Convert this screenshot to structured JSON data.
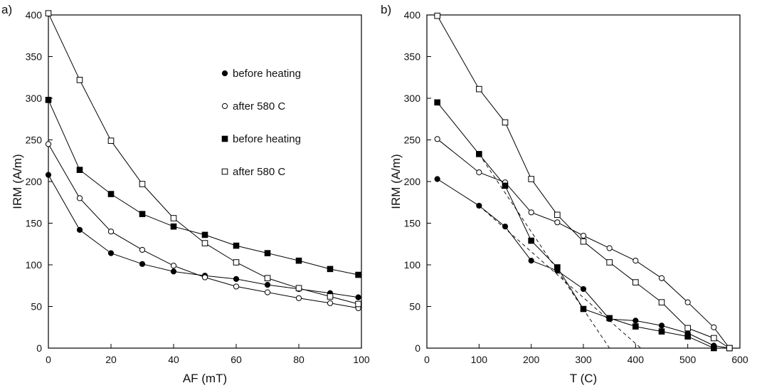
{
  "chart_data": [
    {
      "type": "line",
      "panel_label": "a)",
      "xlabel": "AF (mT)",
      "ylabel": "IRM (A/m)",
      "xlim": [
        0,
        100
      ],
      "ylim": [
        0,
        400
      ],
      "xticks": [
        0,
        20,
        40,
        60,
        80,
        100
      ],
      "yticks": [
        0,
        50,
        100,
        150,
        200,
        250,
        300,
        350,
        400
      ],
      "legend_position": "top-right",
      "series": [
        {
          "name": "before heating",
          "marker": "filled-circle",
          "x": [
            0,
            10,
            20,
            30,
            40,
            50,
            60,
            70,
            80,
            90,
            99
          ],
          "y": [
            208,
            142,
            114,
            101,
            92,
            87,
            83,
            76,
            71,
            66,
            61
          ]
        },
        {
          "name": "after 580 C",
          "marker": "open-circle",
          "x": [
            0,
            10,
            20,
            30,
            40,
            50,
            60,
            70,
            80,
            90,
            99
          ],
          "y": [
            245,
            180,
            140,
            118,
            99,
            85,
            74,
            67,
            60,
            54,
            48
          ]
        },
        {
          "name": "before heating",
          "marker": "filled-square",
          "x": [
            0,
            10,
            20,
            30,
            40,
            50,
            60,
            70,
            80,
            90,
            99
          ],
          "y": [
            298,
            214,
            185,
            161,
            146,
            136,
            123,
            114,
            105,
            95,
            88
          ]
        },
        {
          "name": "after 580 C",
          "marker": "open-square",
          "x": [
            0,
            10,
            20,
            30,
            40,
            50,
            60,
            70,
            80,
            90,
            99
          ],
          "y": [
            402,
            322,
            249,
            197,
            156,
            126,
            103,
            84,
            72,
            62,
            53
          ]
        }
      ]
    },
    {
      "type": "line",
      "panel_label": "b)",
      "xlabel": "T (C)",
      "ylabel": "IRM (A/m)",
      "xlim": [
        0,
        600
      ],
      "ylim": [
        0,
        400
      ],
      "xticks": [
        0,
        100,
        200,
        300,
        400,
        500,
        600
      ],
      "yticks": [
        0,
        50,
        100,
        150,
        200,
        250,
        300,
        350,
        400
      ],
      "series": [
        {
          "marker": "filled-circle",
          "x": [
            20,
            100,
            150,
            200,
            250,
            300,
            350,
            400,
            450,
            500,
            550,
            580
          ],
          "y": [
            203,
            171,
            146,
            105,
            93,
            71,
            35,
            33,
            27,
            18,
            3,
            0
          ]
        },
        {
          "marker": "open-circle",
          "x": [
            20,
            100,
            150,
            200,
            250,
            300,
            350,
            400,
            450,
            500,
            550,
            580
          ],
          "y": [
            251,
            211,
            199,
            163,
            151,
            135,
            120,
            105,
            84,
            55,
            25,
            0
          ]
        },
        {
          "marker": "filled-square",
          "x": [
            20,
            100,
            150,
            200,
            250,
            300,
            350,
            400,
            450,
            500,
            550,
            580
          ],
          "y": [
            295,
            233,
            195,
            129,
            97,
            47,
            36,
            26,
            20,
            14,
            0,
            0
          ]
        },
        {
          "marker": "open-square",
          "x": [
            20,
            100,
            150,
            200,
            250,
            300,
            350,
            400,
            450,
            500,
            550,
            580
          ],
          "y": [
            399,
            311,
            271,
            203,
            160,
            128,
            103,
            79,
            55,
            24,
            12,
            0
          ]
        }
      ],
      "dashed_lines": [
        {
          "x": [
            100,
            350
          ],
          "y": [
            233,
            0
          ]
        },
        {
          "x": [
            100,
            410
          ],
          "y": [
            171,
            0
          ]
        }
      ]
    }
  ]
}
